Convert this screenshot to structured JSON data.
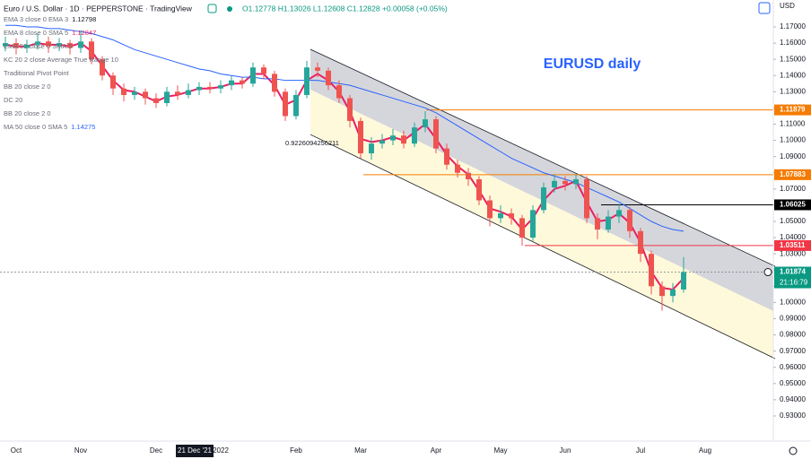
{
  "chart_data": {
    "type": "candlestick",
    "header": {
      "symbol": "Euro / U.S. Dollar · 1D · PEPPERSTONE · TradingView",
      "ohlc": "O1.12778 H1.13026 L1.12608 C1.12828 +0.00058 (+0.05%)",
      "currency": "USD"
    },
    "title": "EURUSD daily",
    "indicators": [
      {
        "name": "EMA 3 close 0 EMA 3",
        "value": "1.12798",
        "color": "#131722"
      },
      {
        "name": "EMA 8 close 0 SMA 5",
        "value": "1.12847",
        "color": "#e91e63"
      },
      {
        "name": "EMA 50 close 0 SMA 5",
        "value": null,
        "color": null
      },
      {
        "name": "KC 20 2 close Average True Range 10",
        "value": null,
        "color": null
      },
      {
        "name": "Traditional Pivot Point",
        "value": null,
        "color": null
      },
      {
        "name": "BB 20 close 2 0",
        "value": null,
        "color": null
      },
      {
        "name": "DC 20",
        "value": null,
        "color": null
      },
      {
        "name": "BB 20 close 2 0",
        "value": null,
        "color": null
      },
      {
        "name": "MA 50 close 0 SMA 5",
        "value": "1.14275",
        "color": "#2962ff"
      }
    ],
    "annotation": "0.9226094256211",
    "crosshair_label": "21 Dec '21",
    "countdown": "21:16:79",
    "categories": [
      null,
      "Oct",
      null,
      null,
      null,
      null,
      null,
      "Nov",
      null,
      null,
      null,
      null,
      null,
      null,
      "Dec",
      null,
      null,
      null,
      null,
      null,
      "2022",
      null,
      null,
      null,
      null,
      null,
      null,
      "Feb",
      null,
      null,
      null,
      null,
      null,
      "Mar",
      null,
      null,
      null,
      null,
      null,
      null,
      "Apr",
      null,
      null,
      null,
      null,
      null,
      "May",
      null,
      null,
      null,
      null,
      null,
      "Jun",
      null,
      null,
      null,
      null,
      null,
      null,
      "Jul",
      null,
      null,
      null,
      null,
      null,
      "Aug",
      null,
      null,
      null,
      null,
      null,
      null
    ],
    "open": [
      1.158,
      1.16,
      1.157,
      1.159,
      1.161,
      1.158,
      1.16,
      1.157,
      1.161,
      1.15,
      1.14,
      1.132,
      1.128,
      1.13,
      1.126,
      1.123,
      1.13,
      1.128,
      1.131,
      1.133,
      1.132,
      1.134,
      1.137,
      1.135,
      1.145,
      1.141,
      1.13,
      1.115,
      1.128,
      1.145,
      1.143,
      1.134,
      1.126,
      1.112,
      1.092,
      1.098,
      1.1,
      1.103,
      1.098,
      1.108,
      1.113,
      1.095,
      1.085,
      1.08,
      1.076,
      1.063,
      1.052,
      1.055,
      1.052,
      1.04,
      1.057,
      1.071,
      1.075,
      1.073,
      1.076,
      1.052,
      1.045,
      1.053,
      1.057,
      1.044,
      1.03,
      1.01,
      1.004,
      1.008,
      null,
      null,
      null,
      null,
      null,
      null,
      null,
      null
    ],
    "high": [
      1.164,
      1.163,
      1.162,
      1.166,
      1.164,
      1.163,
      1.162,
      1.168,
      1.163,
      1.152,
      1.142,
      1.135,
      1.133,
      1.132,
      1.129,
      1.133,
      1.134,
      1.135,
      1.136,
      1.136,
      1.137,
      1.14,
      1.139,
      1.148,
      1.147,
      1.143,
      1.132,
      1.131,
      1.149,
      1.148,
      1.145,
      1.137,
      1.128,
      1.114,
      1.102,
      1.104,
      1.107,
      1.106,
      1.111,
      1.118,
      1.115,
      1.098,
      1.088,
      1.083,
      1.078,
      1.066,
      1.06,
      1.058,
      1.054,
      1.06,
      1.074,
      1.079,
      1.078,
      1.079,
      1.078,
      1.055,
      1.057,
      1.061,
      1.059,
      1.046,
      1.032,
      1.013,
      1.012,
      1.028,
      null,
      null,
      null,
      null,
      null,
      null,
      null,
      null
    ],
    "low": [
      1.155,
      1.153,
      1.154,
      1.156,
      1.154,
      1.155,
      1.153,
      1.154,
      1.147,
      1.137,
      1.128,
      1.124,
      1.125,
      1.122,
      1.12,
      1.121,
      1.125,
      1.126,
      1.128,
      1.129,
      1.129,
      1.131,
      1.132,
      1.133,
      1.138,
      1.127,
      1.112,
      1.113,
      1.126,
      1.139,
      1.131,
      1.123,
      1.108,
      1.089,
      1.088,
      1.095,
      1.097,
      1.095,
      1.096,
      1.105,
      1.092,
      1.082,
      1.077,
      1.072,
      1.06,
      1.047,
      1.049,
      1.048,
      1.035,
      1.038,
      1.055,
      1.068,
      1.069,
      1.07,
      1.049,
      1.039,
      1.043,
      1.049,
      1.04,
      1.025,
      1.005,
      0.995,
      1.0,
      1.006,
      null,
      null,
      null,
      null,
      null,
      null,
      null,
      null
    ],
    "close": [
      1.16,
      1.157,
      1.159,
      1.161,
      1.158,
      1.16,
      1.157,
      1.161,
      1.15,
      1.14,
      1.132,
      1.128,
      1.13,
      1.126,
      1.123,
      1.13,
      1.128,
      1.131,
      1.133,
      1.132,
      1.134,
      1.137,
      1.135,
      1.145,
      1.141,
      1.13,
      1.115,
      1.128,
      1.145,
      1.143,
      1.134,
      1.126,
      1.112,
      1.092,
      1.098,
      1.1,
      1.103,
      1.098,
      1.108,
      1.113,
      1.095,
      1.085,
      1.08,
      1.076,
      1.063,
      1.052,
      1.055,
      1.052,
      1.04,
      1.057,
      1.071,
      1.075,
      1.073,
      1.076,
      1.052,
      1.045,
      1.053,
      1.057,
      1.044,
      1.03,
      1.01,
      1.004,
      1.008,
      1.01874,
      null,
      null,
      null,
      null,
      null,
      null,
      null,
      null
    ],
    "up_color": "#26a69a",
    "down_color": "#ef5350",
    "series": [
      {
        "color": "#e91e63",
        "width": 2,
        "values": [
          1.159,
          1.158,
          1.158,
          1.16,
          1.159,
          1.159,
          1.158,
          1.16,
          1.155,
          1.146,
          1.137,
          1.131,
          1.13,
          1.127,
          1.124,
          1.127,
          1.128,
          1.13,
          1.132,
          1.132,
          1.133,
          1.135,
          1.135,
          1.141,
          1.141,
          1.134,
          1.122,
          1.125,
          1.137,
          1.141,
          1.137,
          1.13,
          1.118,
          1.101,
          1.099,
          1.1,
          1.102,
          1.1,
          1.105,
          1.11,
          1.101,
          1.091,
          1.084,
          1.079,
          1.069,
          1.058,
          1.056,
          1.053,
          1.045,
          1.052,
          1.063,
          1.07,
          1.072,
          1.075,
          1.062,
          1.05,
          1.051,
          1.055,
          1.049,
          1.037,
          1.019,
          1.009,
          1.008,
          1.015,
          null,
          null,
          null,
          null,
          null,
          null,
          null,
          null
        ]
      },
      {
        "color": "#2962ff",
        "width": 1,
        "values": [
          1.171,
          1.171,
          1.17,
          1.17,
          1.169,
          1.169,
          1.168,
          1.167,
          1.166,
          1.164,
          1.162,
          1.159,
          1.156,
          1.154,
          1.152,
          1.15,
          1.148,
          1.146,
          1.144,
          1.143,
          1.141,
          1.14,
          1.139,
          1.139,
          1.138,
          1.138,
          1.137,
          1.137,
          1.137,
          1.137,
          1.136,
          1.135,
          1.134,
          1.132,
          1.13,
          1.128,
          1.126,
          1.124,
          1.122,
          1.12,
          1.117,
          1.113,
          1.109,
          1.105,
          1.101,
          1.097,
          1.093,
          1.089,
          1.086,
          1.083,
          1.08,
          1.078,
          1.076,
          1.074,
          1.071,
          1.068,
          1.065,
          1.062,
          1.058,
          1.054,
          1.05,
          1.047,
          1.045,
          1.044,
          null,
          null,
          null,
          null,
          null,
          null,
          null,
          null
        ]
      }
    ],
    "channel": {
      "upper": [
        1.1562,
        1.0223
      ],
      "middle": [
        1.1313,
        0.9947
      ],
      "lower": [
        1.1036,
        0.9654
      ],
      "band_color": "#b2b5be",
      "lower_band_color": "#fff9db"
    },
    "levels": [
      {
        "value": 1.11879,
        "color": "#f57c00"
      },
      {
        "value": 1.07883,
        "color": "#f57c00"
      },
      {
        "value": 1.06025,
        "color": "#000000"
      },
      {
        "value": 1.03511,
        "color": "#f23645"
      },
      {
        "value": 1.01874,
        "color": "#089981"
      }
    ],
    "ylim": [
      0.9145,
      1.1866
    ],
    "yticks": [
      {
        "value": 0.93,
        "label": "0.93000"
      },
      {
        "value": 0.94,
        "label": "0.94000"
      },
      {
        "value": 0.95,
        "label": "0.95000"
      },
      {
        "value": 0.96,
        "label": "0.96000"
      },
      {
        "value": 0.97,
        "label": "0.97000"
      },
      {
        "value": 0.98,
        "label": "0.98000"
      },
      {
        "value": 0.99,
        "label": "0.99000"
      },
      {
        "value": 1.0,
        "label": "1.00000"
      },
      {
        "value": 1.01,
        "label": "1.01000"
      },
      {
        "value": 1.02,
        "label": "1.02000"
      },
      {
        "value": 1.03,
        "label": "1.03000"
      },
      {
        "value": 1.04,
        "label": "1.04000"
      },
      {
        "value": 1.05,
        "label": "1.05000"
      },
      {
        "value": 1.06,
        "label": "1.06000"
      },
      {
        "value": 1.07,
        "label": "1.07000"
      },
      {
        "value": 1.08,
        "label": "1.08000"
      },
      {
        "value": 1.09,
        "label": "1.09000"
      },
      {
        "value": 1.1,
        "label": "1.10000"
      },
      {
        "value": 1.11,
        "label": "1.11000"
      },
      {
        "value": 1.12,
        "label": "1.12000"
      },
      {
        "value": 1.13,
        "label": "1.13000"
      },
      {
        "value": 1.14,
        "label": "1.14000"
      },
      {
        "value": 1.15,
        "label": "1.15000"
      },
      {
        "value": 1.16,
        "label": "1.16000"
      },
      {
        "value": 1.17,
        "label": "1.17000"
      }
    ]
  }
}
